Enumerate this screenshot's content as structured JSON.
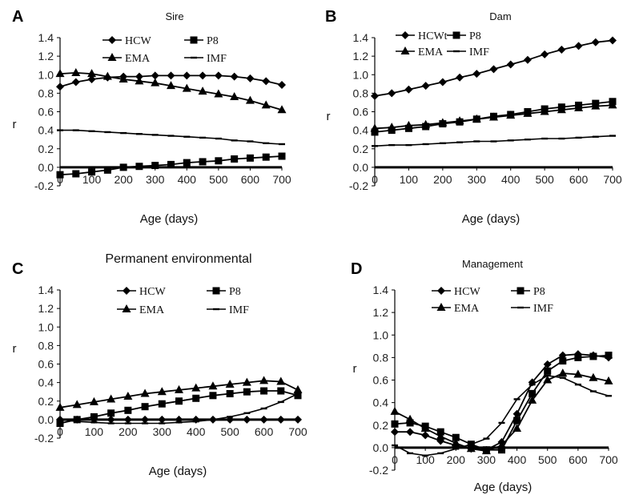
{
  "chart_data": [
    {
      "type": "line",
      "panel": "A",
      "title": "Sire",
      "xlabel": "Age (days)",
      "ylabel": "r",
      "xlim": [
        0,
        700
      ],
      "ylim": [
        -0.2,
        1.4
      ],
      "xticks": [
        "0",
        "100",
        "200",
        "300",
        "400",
        "500",
        "600",
        "700"
      ],
      "yticks": [
        "-0.2",
        "0.0",
        "0.2",
        "0.4",
        "0.6",
        "0.8",
        "1.0",
        "1.2",
        "1.4"
      ],
      "legend_columns": 2,
      "x": [
        0,
        50,
        100,
        150,
        200,
        250,
        300,
        350,
        400,
        450,
        500,
        550,
        600,
        650,
        700
      ],
      "series": [
        {
          "name": "HCW",
          "marker": "diamond",
          "values": [
            0.87,
            0.92,
            0.95,
            0.97,
            0.98,
            0.98,
            0.99,
            0.99,
            0.99,
            0.99,
            0.99,
            0.98,
            0.96,
            0.93,
            0.89
          ]
        },
        {
          "name": "P8",
          "marker": "square",
          "values": [
            -0.08,
            -0.07,
            -0.05,
            -0.03,
            0.0,
            0.01,
            0.02,
            0.03,
            0.05,
            0.06,
            0.07,
            0.09,
            0.1,
            0.11,
            0.12
          ]
        },
        {
          "name": "EMA",
          "marker": "triangle",
          "values": [
            1.01,
            1.02,
            1.01,
            0.98,
            0.95,
            0.93,
            0.91,
            0.88,
            0.85,
            0.82,
            0.79,
            0.76,
            0.72,
            0.67,
            0.62
          ]
        },
        {
          "name": "IMF",
          "marker": "dash",
          "values": [
            0.4,
            0.4,
            0.39,
            0.38,
            0.37,
            0.36,
            0.35,
            0.34,
            0.33,
            0.32,
            0.31,
            0.29,
            0.28,
            0.26,
            0.25
          ]
        }
      ]
    },
    {
      "type": "line",
      "panel": "B",
      "title": "Dam",
      "xlabel": "Age (days)",
      "ylabel": "r",
      "xlim": [
        0,
        700
      ],
      "ylim": [
        -0.2,
        1.4
      ],
      "xticks": [
        "0",
        "100",
        "200",
        "300",
        "400",
        "500",
        "600",
        "700"
      ],
      "yticks": [
        "-0.2",
        "0.0",
        "0.2",
        "0.4",
        "0.6",
        "0.8",
        "1.0",
        "1.2",
        "1.4"
      ],
      "legend_columns": 2,
      "x": [
        0,
        50,
        100,
        150,
        200,
        250,
        300,
        350,
        400,
        450,
        500,
        550,
        600,
        650,
        700
      ],
      "series": [
        {
          "name": "HCWt",
          "marker": "diamond",
          "values": [
            0.77,
            0.8,
            0.84,
            0.88,
            0.92,
            0.97,
            1.01,
            1.06,
            1.11,
            1.16,
            1.22,
            1.27,
            1.31,
            1.35,
            1.37
          ]
        },
        {
          "name": "P8",
          "marker": "square",
          "values": [
            0.38,
            0.4,
            0.42,
            0.44,
            0.47,
            0.49,
            0.52,
            0.55,
            0.57,
            0.6,
            0.63,
            0.65,
            0.67,
            0.69,
            0.71
          ]
        },
        {
          "name": "EMA",
          "marker": "triangle",
          "values": [
            0.42,
            0.43,
            0.45,
            0.46,
            0.48,
            0.5,
            0.52,
            0.54,
            0.56,
            0.58,
            0.6,
            0.62,
            0.64,
            0.66,
            0.67
          ]
        },
        {
          "name": "IMF",
          "marker": "dash",
          "values": [
            0.23,
            0.24,
            0.24,
            0.25,
            0.26,
            0.27,
            0.28,
            0.28,
            0.29,
            0.3,
            0.31,
            0.31,
            0.32,
            0.33,
            0.34
          ]
        }
      ]
    },
    {
      "type": "line",
      "panel": "C",
      "title": "Permanent environmental",
      "xlabel": "Age (days)",
      "ylabel": "r",
      "xlim": [
        0,
        700
      ],
      "ylim": [
        -0.2,
        1.4
      ],
      "xticks": [
        "0",
        "100",
        "200",
        "300",
        "400",
        "500",
        "600",
        "700"
      ],
      "yticks": [
        "-0.2",
        "0.0",
        "0.2",
        "0.4",
        "0.6",
        "0.8",
        "1.0",
        "1.2",
        "1.4"
      ],
      "legend_columns": 2,
      "x": [
        0,
        50,
        100,
        150,
        200,
        250,
        300,
        350,
        400,
        450,
        500,
        550,
        600,
        650,
        700
      ],
      "series": [
        {
          "name": "HCW",
          "marker": "diamond",
          "values": [
            0.0,
            0.0,
            0.0,
            0.0,
            0.0,
            0.0,
            0.0,
            0.0,
            0.0,
            0.0,
            0.0,
            0.0,
            0.0,
            0.0,
            0.0
          ]
        },
        {
          "name": "P8",
          "marker": "square",
          "values": [
            -0.04,
            0.0,
            0.03,
            0.07,
            0.1,
            0.14,
            0.17,
            0.2,
            0.23,
            0.26,
            0.28,
            0.3,
            0.31,
            0.31,
            0.26
          ]
        },
        {
          "name": "EMA",
          "marker": "triangle",
          "values": [
            0.13,
            0.16,
            0.19,
            0.22,
            0.25,
            0.28,
            0.3,
            0.32,
            0.34,
            0.36,
            0.38,
            0.4,
            0.42,
            0.41,
            0.32
          ]
        },
        {
          "name": "IMF",
          "marker": "dash",
          "values": [
            0.0,
            -0.02,
            -0.03,
            -0.04,
            -0.04,
            -0.04,
            -0.04,
            -0.03,
            -0.02,
            0.0,
            0.03,
            0.07,
            0.12,
            0.19,
            0.28
          ]
        }
      ]
    },
    {
      "type": "line",
      "panel": "D",
      "title": "Management",
      "xlabel": "Age (days)",
      "ylabel": "r",
      "xlim": [
        0,
        700
      ],
      "ylim": [
        -0.2,
        1.4
      ],
      "xticks": [
        "0",
        "100",
        "200",
        "300",
        "400",
        "500",
        "600",
        "700"
      ],
      "yticks": [
        "-0.2",
        "0.0",
        "0.2",
        "0.4",
        "0.6",
        "0.8",
        "1.0",
        "1.2",
        "1.4"
      ],
      "legend_columns": 2,
      "x": [
        0,
        50,
        100,
        150,
        200,
        250,
        300,
        350,
        400,
        450,
        500,
        550,
        600,
        650,
        700
      ],
      "series": [
        {
          "name": "HCW",
          "marker": "diamond",
          "values": [
            0.14,
            0.14,
            0.11,
            0.06,
            0.02,
            -0.01,
            -0.02,
            0.05,
            0.3,
            0.58,
            0.74,
            0.82,
            0.83,
            0.82,
            0.8
          ]
        },
        {
          "name": "P8",
          "marker": "square",
          "values": [
            0.21,
            0.22,
            0.19,
            0.14,
            0.09,
            0.03,
            -0.02,
            -0.02,
            0.24,
            0.48,
            0.68,
            0.77,
            0.8,
            0.81,
            0.82
          ]
        },
        {
          "name": "EMA",
          "marker": "triangle",
          "values": [
            0.32,
            0.25,
            0.17,
            0.1,
            0.04,
            -0.01,
            -0.03,
            0.02,
            0.17,
            0.42,
            0.6,
            0.66,
            0.65,
            0.62,
            0.59
          ]
        },
        {
          "name": "IMF",
          "marker": "dash",
          "values": [
            0.02,
            -0.05,
            -0.07,
            -0.05,
            -0.01,
            0.03,
            0.08,
            0.22,
            0.43,
            0.56,
            0.64,
            0.62,
            0.56,
            0.5,
            0.46
          ]
        }
      ]
    }
  ]
}
